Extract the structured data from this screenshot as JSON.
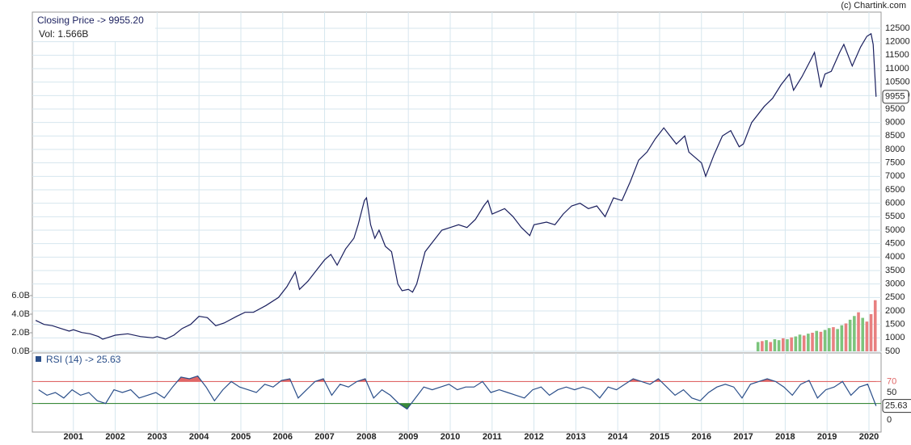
{
  "chart_data": [
    {
      "type": "line",
      "title": "Closing Price -> 9955.20",
      "subtitle": "Vol: 1.566B",
      "source": "(c) Chartink.com",
      "last_label": "9955",
      "color": "#1a1f5e",
      "grid": true,
      "xlim": [
        2000.02,
        2020.29
      ],
      "xticks": [
        2001,
        2002,
        2003,
        2004,
        2005,
        2006,
        2007,
        2008,
        2009,
        2010,
        2011,
        2012,
        2013,
        2014,
        2015,
        2016,
        2017,
        2018,
        2019,
        2020
      ],
      "ylim": [
        500,
        13100
      ],
      "yticks": [
        500,
        1000,
        1500,
        2000,
        2500,
        3000,
        3500,
        4000,
        4500,
        5000,
        5500,
        6000,
        6500,
        7000,
        7500,
        8000,
        8500,
        9000,
        9500,
        10000,
        10500,
        11000,
        11500,
        12000,
        12500
      ],
      "x": [
        2000.1,
        2000.3,
        2000.5,
        2000.7,
        2000.9,
        2001.0,
        2001.2,
        2001.4,
        2001.6,
        2001.7,
        2001.9,
        2002.0,
        2002.3,
        2002.6,
        2002.9,
        2003.0,
        2003.2,
        2003.4,
        2003.6,
        2003.8,
        2004.0,
        2004.2,
        2004.4,
        2004.6,
        2004.9,
        2005.1,
        2005.3,
        2005.6,
        2005.9,
        2006.1,
        2006.3,
        2006.4,
        2006.6,
        2006.8,
        2007.0,
        2007.15,
        2007.3,
        2007.5,
        2007.7,
        2007.8,
        2007.95,
        2008.0,
        2008.1,
        2008.2,
        2008.3,
        2008.45,
        2008.6,
        2008.75,
        2008.85,
        2009.0,
        2009.1,
        2009.2,
        2009.4,
        2009.6,
        2009.8,
        2010.0,
        2010.2,
        2010.4,
        2010.6,
        2010.8,
        2010.9,
        2011.0,
        2011.3,
        2011.5,
        2011.7,
        2011.9,
        2012.0,
        2012.3,
        2012.5,
        2012.7,
        2012.9,
        2013.1,
        2013.3,
        2013.5,
        2013.7,
        2013.9,
        2014.1,
        2014.3,
        2014.5,
        2014.7,
        2014.9,
        2015.1,
        2015.2,
        2015.4,
        2015.6,
        2015.7,
        2016.0,
        2016.1,
        2016.3,
        2016.5,
        2016.7,
        2016.9,
        2017.0,
        2017.2,
        2017.5,
        2017.7,
        2017.9,
        2018.1,
        2018.2,
        2018.4,
        2018.6,
        2018.7,
        2018.85,
        2018.95,
        2019.1,
        2019.3,
        2019.4,
        2019.6,
        2019.8,
        2019.95,
        2020.05,
        2020.1,
        2020.17
      ],
      "values": [
        1650,
        1500,
        1450,
        1350,
        1250,
        1300,
        1200,
        1150,
        1050,
        950,
        1050,
        1100,
        1150,
        1050,
        1000,
        1050,
        950,
        1100,
        1350,
        1500,
        1800,
        1750,
        1450,
        1550,
        1800,
        1950,
        1950,
        2200,
        2500,
        2900,
        3450,
        2800,
        3100,
        3500,
        3900,
        4100,
        3700,
        4300,
        4700,
        5200,
        6100,
        6200,
        5200,
        4700,
        5000,
        4400,
        4200,
        3000,
        2750,
        2800,
        2700,
        3000,
        4200,
        4600,
        5000,
        5100,
        5200,
        5100,
        5400,
        5900,
        6100,
        5600,
        5800,
        5500,
        5100,
        4800,
        5200,
        5300,
        5200,
        5600,
        5900,
        6000,
        5800,
        5900,
        5500,
        6200,
        6100,
        6800,
        7600,
        7900,
        8400,
        8800,
        8600,
        8200,
        8500,
        7900,
        7500,
        7000,
        7800,
        8500,
        8700,
        8100,
        8200,
        9000,
        9600,
        9900,
        10400,
        10800,
        10200,
        10700,
        11300,
        11600,
        10300,
        10800,
        10900,
        11600,
        11900,
        11100,
        11800,
        12200,
        12300,
        11900,
        9955
      ]
    },
    {
      "type": "bar",
      "ylim": [
        0,
        36.5
      ],
      "yticks": [
        {
          "value": 0,
          "label": "0.0B"
        },
        {
          "value": 2,
          "label": "2.0B"
        },
        {
          "value": 4,
          "label": "4.0B"
        },
        {
          "value": 6,
          "label": "6.0B"
        }
      ],
      "x": [
        2017.35,
        2017.45,
        2017.55,
        2017.65,
        2017.75,
        2017.85,
        2017.95,
        2018.05,
        2018.15,
        2018.25,
        2018.35,
        2018.45,
        2018.55,
        2018.65,
        2018.75,
        2018.85,
        2018.95,
        2019.05,
        2019.15,
        2019.25,
        2019.35,
        2019.45,
        2019.55,
        2019.65,
        2019.75,
        2019.85,
        2019.95,
        2020.05,
        2020.15
      ],
      "values": [
        1.0,
        1.1,
        1.2,
        1.0,
        1.3,
        1.2,
        1.4,
        1.3,
        1.5,
        1.6,
        1.8,
        1.7,
        1.9,
        2.0,
        2.2,
        2.1,
        2.3,
        2.5,
        2.6,
        2.4,
        2.8,
        3.0,
        3.4,
        3.8,
        4.2,
        3.6,
        3.2,
        4.0,
        5.5
      ],
      "colors": [
        "#7cc47c",
        "#e88080",
        "#7cc47c",
        "#e88080",
        "#7cc47c",
        "#7cc47c",
        "#e88080",
        "#7cc47c",
        "#e88080",
        "#7cc47c",
        "#7cc47c",
        "#e88080",
        "#7cc47c",
        "#e88080",
        "#7cc47c",
        "#e88080",
        "#7cc47c",
        "#7cc47c",
        "#e88080",
        "#7cc47c",
        "#7cc47c",
        "#e88080",
        "#7cc47c",
        "#7cc47c",
        "#e88080",
        "#7cc47c",
        "#e88080",
        "#e88080",
        "#e88080"
      ]
    },
    {
      "type": "line",
      "title": "RSI (14) -> 25.63",
      "last_label": "25.63",
      "color": "#2b4f8a",
      "ylim": [
        -22,
        122
      ],
      "yticks": [
        0,
        50,
        70
      ],
      "levels": [
        {
          "value": 70,
          "color": "#e06666",
          "side": "above"
        },
        {
          "value": 30,
          "color": "#3a8a3a",
          "side": "below"
        }
      ],
      "x": [
        2000.17,
        2000.37,
        2000.57,
        2000.77,
        2000.97,
        2001.17,
        2001.37,
        2001.57,
        2001.77,
        2001.97,
        2002.17,
        2002.37,
        2002.57,
        2002.77,
        2002.97,
        2003.17,
        2003.37,
        2003.57,
        2003.77,
        2003.97,
        2004.17,
        2004.37,
        2004.57,
        2004.77,
        2004.97,
        2005.17,
        2005.37,
        2005.57,
        2005.77,
        2005.97,
        2006.17,
        2006.37,
        2006.57,
        2006.77,
        2006.97,
        2007.17,
        2007.37,
        2007.57,
        2007.77,
        2007.97,
        2008.17,
        2008.37,
        2008.57,
        2008.77,
        2008.97,
        2009.17,
        2009.37,
        2009.57,
        2009.77,
        2009.97,
        2010.17,
        2010.37,
        2010.57,
        2010.77,
        2010.97,
        2011.17,
        2011.37,
        2011.57,
        2011.77,
        2011.97,
        2012.17,
        2012.37,
        2012.57,
        2012.77,
        2012.97,
        2013.17,
        2013.37,
        2013.57,
        2013.77,
        2013.97,
        2014.17,
        2014.37,
        2014.57,
        2014.77,
        2014.97,
        2015.17,
        2015.37,
        2015.57,
        2015.77,
        2015.97,
        2016.17,
        2016.37,
        2016.57,
        2016.77,
        2016.97,
        2017.17,
        2017.37,
        2017.57,
        2017.77,
        2017.97,
        2018.17,
        2018.37,
        2018.57,
        2018.77,
        2018.97,
        2019.17,
        2019.37,
        2019.57,
        2019.77,
        2019.97,
        2020.17
      ],
      "values": [
        55,
        45,
        50,
        40,
        55,
        45,
        50,
        35,
        30,
        55,
        50,
        55,
        40,
        45,
        50,
        40,
        60,
        78,
        75,
        80,
        60,
        35,
        55,
        70,
        60,
        55,
        50,
        65,
        60,
        72,
        75,
        40,
        55,
        70,
        75,
        45,
        65,
        60,
        70,
        75,
        40,
        55,
        45,
        30,
        20,
        40,
        60,
        55,
        60,
        65,
        55,
        60,
        60,
        70,
        50,
        55,
        50,
        45,
        40,
        55,
        60,
        45,
        55,
        60,
        55,
        60,
        55,
        40,
        60,
        55,
        65,
        75,
        70,
        65,
        75,
        60,
        45,
        55,
        40,
        35,
        50,
        60,
        65,
        60,
        40,
        65,
        70,
        75,
        70,
        60,
        45,
        65,
        72,
        40,
        55,
        60,
        70,
        45,
        60,
        65,
        25.63
      ]
    }
  ]
}
